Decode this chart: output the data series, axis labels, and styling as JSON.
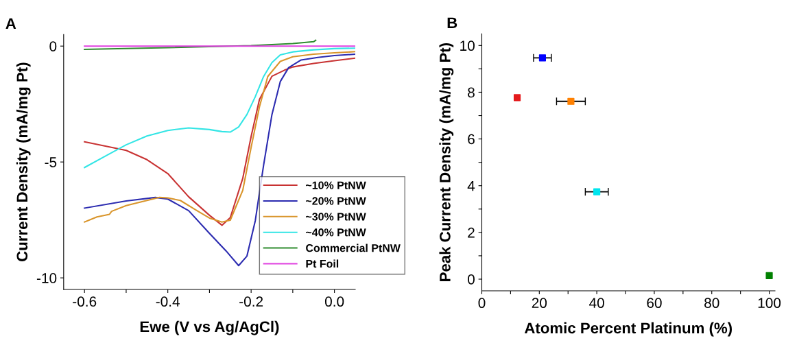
{
  "chart_data": [
    {
      "type": "line",
      "title": "A",
      "xlabel": "Ewe (V vs Ag/AgCl)",
      "ylabel": "Current Density (mA/mg Pt)",
      "xlim": [
        -0.65,
        0.05
      ],
      "ylim": [
        -10.5,
        0.5
      ],
      "xticks": [
        -0.6,
        {
          "value": -0.5,
          "label": null
        },
        -0.4,
        {
          "value": -0.3,
          "label": null
        },
        -0.2,
        {
          "value": -0.1,
          "label": null
        },
        {
          "value": 0,
          "label": "0.0"
        }
      ],
      "yticks": [
        -10,
        -5,
        0
      ],
      "legend": "lower right",
      "grid": false,
      "marker": "none",
      "line_style": "solid",
      "series": [
        {
          "name": "~10% PtNW",
          "color": "#c83232",
          "x": [
            -0.6,
            -0.5,
            -0.45,
            -0.4,
            -0.35,
            -0.3,
            -0.27,
            -0.25,
            -0.22,
            -0.2,
            -0.18,
            -0.15,
            -0.12,
            -0.1,
            -0.05,
            0,
            0.05
          ],
          "values": [
            -4.13,
            -4.5,
            -4.9,
            -5.5,
            -6.5,
            -7.3,
            -7.73,
            -7.4,
            -5.7,
            -3.9,
            -2.3,
            -1.3,
            -1.04,
            -0.9,
            -0.75,
            -0.63,
            -0.52
          ]
        },
        {
          "name": "~20% PtNW",
          "color": "#2b2bb0",
          "x": [
            -0.6,
            -0.5,
            -0.43,
            -0.4,
            -0.35,
            -0.3,
            -0.26,
            -0.23,
            -0.21,
            -0.19,
            -0.17,
            -0.15,
            -0.13,
            -0.11,
            -0.08,
            -0.04,
            0,
            0.05
          ],
          "values": [
            -6.99,
            -6.68,
            -6.53,
            -6.6,
            -7.1,
            -8.08,
            -8.84,
            -9.47,
            -9.06,
            -7.53,
            -5.13,
            -2.95,
            -1.53,
            -0.93,
            -0.6,
            -0.49,
            -0.41,
            -0.35
          ]
        },
        {
          "name": "~30% PtNW",
          "color": "#d9952b",
          "x": [
            -0.6,
            -0.57,
            -0.54,
            -0.535,
            -0.5,
            -0.45,
            -0.42,
            -0.4,
            -0.37,
            -0.33,
            -0.3,
            -0.27,
            -0.25,
            -0.22,
            -0.2,
            -0.18,
            -0.16,
            -0.13,
            -0.1,
            -0.05,
            0,
            0.05
          ],
          "values": [
            -7.59,
            -7.37,
            -7.26,
            -7.13,
            -6.88,
            -6.66,
            -6.53,
            -6.55,
            -6.66,
            -7.1,
            -7.42,
            -7.59,
            -7.51,
            -6.22,
            -4.37,
            -2.62,
            -1.31,
            -0.66,
            -0.46,
            -0.35,
            -0.29,
            -0.24
          ]
        },
        {
          "name": "~40% PtNW",
          "color": "#33e5e5",
          "x": [
            -0.6,
            -0.55,
            -0.5,
            -0.45,
            -0.4,
            -0.35,
            -0.3,
            -0.27,
            -0.25,
            -0.23,
            -0.21,
            -0.19,
            -0.17,
            -0.15,
            -0.13,
            -0.1,
            -0.05,
            0,
            0.05
          ],
          "values": [
            -5.24,
            -4.75,
            -4.26,
            -3.88,
            -3.64,
            -3.53,
            -3.6,
            -3.69,
            -3.71,
            -3.49,
            -2.95,
            -2.18,
            -1.31,
            -0.71,
            -0.38,
            -0.25,
            -0.16,
            -0.11,
            -0.09
          ]
        },
        {
          "name": "Commercial PtNW",
          "color": "#2e8b2e",
          "x": [
            -0.6,
            -0.4,
            -0.2,
            -0.1,
            -0.05,
            -0.045
          ],
          "values": [
            -0.14,
            -0.07,
            0.02,
            0.11,
            0.19,
            0.25
          ]
        },
        {
          "name": "Pt Foil",
          "color": "#e040e0",
          "x": [
            -0.6,
            0.05
          ],
          "values": [
            0,
            0
          ]
        }
      ]
    },
    {
      "type": "scatter",
      "title": "B",
      "xlabel": "Atomic Percent Platinum (%)",
      "ylabel": "Peak Current Density (mA/mg Pt)",
      "xlim": [
        0,
        102
      ],
      "ylim": [
        -0.5,
        10.5
      ],
      "xticks": [
        0,
        {
          "value": 10,
          "label": null
        },
        20,
        {
          "value": 30,
          "label": null
        },
        40,
        {
          "value": 50,
          "label": null
        },
        60,
        {
          "value": 70,
          "label": null
        },
        80,
        {
          "value": 90,
          "label": null
        },
        100
      ],
      "yticks": [
        0,
        {
          "value": 1,
          "label": null
        },
        2,
        {
          "value": 3,
          "label": null
        },
        4,
        {
          "value": 5,
          "label": null
        },
        6,
        {
          "value": 7,
          "label": null
        },
        8,
        {
          "value": 9,
          "label": null
        },
        10
      ],
      "grid": false,
      "marker": "square",
      "x": [
        12.3,
        21.1,
        31,
        40,
        100
      ],
      "values": [
        7.77,
        9.47,
        7.61,
        3.74,
        0.15
      ],
      "colors": [
        "#e41a1c",
        "#0000ff",
        "#ff8000",
        "#00e5ee",
        "#008000"
      ],
      "xerrors": [
        null,
        3.1,
        5,
        4,
        null
      ]
    }
  ]
}
